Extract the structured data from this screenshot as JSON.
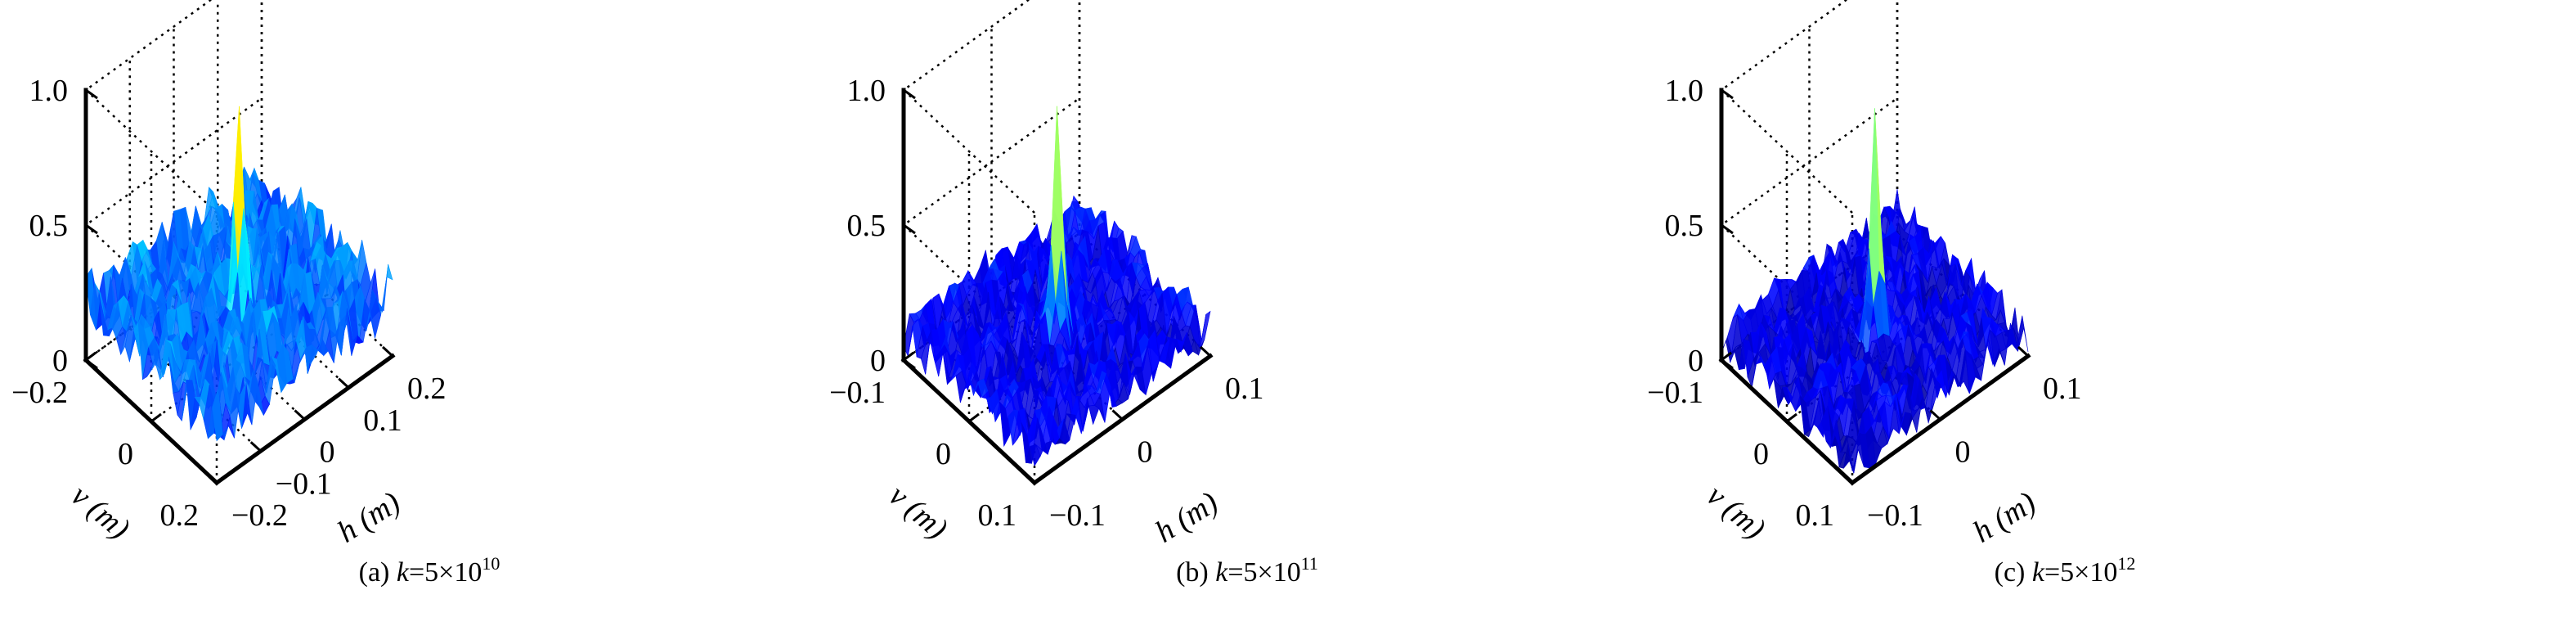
{
  "chart_data": [
    {
      "type": "surface",
      "caption": {
        "prefix": "(a)",
        "k_symbol": "k",
        "equals": "=",
        "mantissa": "5×10",
        "exponent": "10"
      },
      "zlim": [
        0,
        1.0
      ],
      "zticks": [
        "0",
        "0.5",
        "1.0"
      ],
      "xlabel": "h (m)",
      "ylabel": "v (m)",
      "xlim": [
        -0.2,
        0.2
      ],
      "ylim": [
        -0.2,
        0.2
      ],
      "xticks": [
        "−0.2",
        "−0.1",
        "0",
        "0.1",
        "0.2"
      ],
      "yticks": [
        "0.2",
        "0",
        "−0.2"
      ],
      "grid": true,
      "peak_value": 0.88,
      "background_level": 0.18,
      "noise_amplitude": 0.16,
      "seed": 11
    },
    {
      "type": "surface",
      "caption": {
        "prefix": "(b)",
        "k_symbol": "k",
        "equals": "=",
        "mantissa": "5×10",
        "exponent": "11"
      },
      "zlim": [
        0,
        1.0
      ],
      "zticks": [
        "0",
        "0.5",
        "1.0"
      ],
      "xlabel": "h (m)",
      "ylabel": "v (m)",
      "xlim": [
        -0.1,
        0.1
      ],
      "ylim": [
        -0.1,
        0.1
      ],
      "xticks": [
        "−0.1",
        "0",
        "0.1"
      ],
      "yticks": [
        "0.1",
        "0",
        "−0.1"
      ],
      "grid": true,
      "peak_value": 0.9,
      "background_level": 0.08,
      "noise_amplitude": 0.12,
      "seed": 23
    },
    {
      "type": "surface",
      "caption": {
        "prefix": "(c)",
        "k_symbol": "k",
        "equals": "=",
        "mantissa": "5×10",
        "exponent": "12"
      },
      "zlim": [
        0,
        1.0
      ],
      "zticks": [
        "0",
        "0.5",
        "1.0"
      ],
      "xlabel": "h (m)",
      "ylabel": "v (m)",
      "xlim": [
        -0.1,
        0.1
      ],
      "ylim": [
        -0.1,
        0.1
      ],
      "xticks": [
        "−0.1",
        "0",
        "0.1"
      ],
      "yticks": [
        "0.1",
        "0",
        "−0.1"
      ],
      "grid": true,
      "peak_value": 0.9,
      "background_level": 0.06,
      "noise_amplitude": 0.12,
      "seed": 37
    }
  ]
}
